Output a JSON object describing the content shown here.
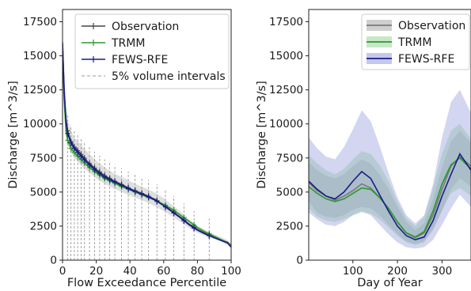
{
  "chart_data": [
    {
      "type": "line",
      "xlabel": "Flow Exceedance Percentile",
      "ylabel": "Discharge [m^3/s]",
      "xlim": [
        0,
        100
      ],
      "ylim": [
        0,
        18400
      ],
      "xticks": [
        0,
        20,
        40,
        60,
        80,
        100
      ],
      "yticks": [
        0,
        2500,
        5000,
        7500,
        10000,
        12500,
        15000,
        17500
      ],
      "grid": false,
      "legend_position": "top-right",
      "legend": [
        "Observation",
        "TRMM",
        "FEWS-RFE",
        "5% volume intervals"
      ],
      "markers_x": [
        3,
        5,
        7,
        9,
        11,
        13,
        16,
        19,
        22,
        25,
        28,
        31,
        35,
        39,
        43,
        47,
        51,
        56,
        61,
        66,
        72,
        78,
        87
      ],
      "series": [
        {
          "name": "Observation",
          "color": "#444444",
          "band": true,
          "x": [
            0,
            1,
            2,
            3,
            5,
            7,
            10,
            15,
            20,
            25,
            30,
            35,
            40,
            45,
            50,
            55,
            60,
            65,
            70,
            75,
            80,
            85,
            90,
            95,
            98,
            100
          ],
          "y": [
            16000,
            12500,
            10400,
            9500,
            8700,
            8300,
            7900,
            7200,
            6650,
            6200,
            5850,
            5550,
            5250,
            5000,
            4750,
            4450,
            4050,
            3600,
            3150,
            2650,
            2250,
            1950,
            1700,
            1450,
            1300,
            1050
          ],
          "band_low": [
            14500,
            11000,
            9300,
            8500,
            7900,
            7500,
            7100,
            6500,
            6000,
            5600,
            5300,
            5000,
            4750,
            4500,
            4250,
            3950,
            3600,
            3200,
            2800,
            2350,
            2000,
            1750,
            1550,
            1300,
            1150,
            950
          ],
          "band_high": [
            17000,
            13800,
            11300,
            10300,
            9500,
            9000,
            8600,
            7900,
            7300,
            6800,
            6400,
            6100,
            5800,
            5500,
            5250,
            4950,
            4550,
            4050,
            3550,
            3000,
            2550,
            2200,
            1900,
            1650,
            1450,
            1200
          ]
        },
        {
          "name": "TRMM",
          "color": "#2a9a2a",
          "x": [
            0,
            1,
            2,
            3,
            5,
            7,
            10,
            15,
            20,
            25,
            30,
            35,
            40,
            45,
            50,
            55,
            60,
            65,
            70,
            75,
            80,
            85,
            90,
            95,
            98,
            100
          ],
          "y": [
            15500,
            11800,
            9500,
            8800,
            8200,
            7900,
            7500,
            6900,
            6400,
            6000,
            5700,
            5400,
            5150,
            4900,
            4650,
            4400,
            4100,
            3750,
            3300,
            2850,
            2400,
            2050,
            1750,
            1450,
            1250,
            1000
          ]
        },
        {
          "name": "FEWS-RFE",
          "color": "#1a1a8c",
          "x": [
            0,
            1,
            2,
            3,
            5,
            7,
            10,
            15,
            20,
            25,
            30,
            35,
            40,
            45,
            50,
            55,
            60,
            65,
            70,
            75,
            80,
            85,
            90,
            95,
            98,
            100
          ],
          "y": [
            15900,
            12200,
            10200,
            9300,
            8600,
            8200,
            7750,
            7100,
            6550,
            6100,
            5800,
            5500,
            5200,
            4950,
            4700,
            4400,
            4000,
            3550,
            3100,
            2600,
            2200,
            1900,
            1650,
            1400,
            1250,
            950
          ]
        }
      ]
    },
    {
      "type": "line",
      "xlabel": "Day of Year",
      "ylabel": "Discharge [m^3/s]",
      "xlim": [
        1,
        365
      ],
      "ylim": [
        0,
        18400
      ],
      "xticks": [
        100,
        200,
        300
      ],
      "yticks": [
        0,
        2500,
        5000,
        7500,
        10000,
        12500,
        15000,
        17500
      ],
      "grid": false,
      "legend_position": "top-right",
      "series": [
        {
          "name": "Observation",
          "color": "#7a7a7a",
          "band_color": "#a0a0a0",
          "x": [
            1,
            20,
            40,
            60,
            80,
            100,
            120,
            140,
            160,
            180,
            200,
            220,
            240,
            260,
            280,
            300,
            320,
            340,
            365
          ],
          "y": [
            5700,
            5100,
            4700,
            4400,
            4700,
            5100,
            5600,
            5300,
            4600,
            3800,
            2800,
            2000,
            1650,
            2000,
            3300,
            5200,
            6900,
            7600,
            6900
          ],
          "band_low": [
            4300,
            3500,
            3200,
            3100,
            3300,
            3700,
            3900,
            3800,
            3300,
            2600,
            1900,
            1400,
            1200,
            1400,
            2200,
            3600,
            5200,
            6000,
            5400
          ],
          "band_high": [
            7200,
            6600,
            6200,
            6000,
            6300,
            6900,
            7400,
            7100,
            6300,
            5200,
            3900,
            2800,
            2200,
            2700,
            4500,
            6800,
            8700,
            9500,
            8600
          ]
        },
        {
          "name": "TRMM",
          "color": "#2a9a2a",
          "band_color": "#8fd08f",
          "x": [
            1,
            20,
            40,
            60,
            80,
            100,
            120,
            140,
            160,
            180,
            200,
            220,
            240,
            260,
            280,
            300,
            320,
            340,
            365
          ],
          "y": [
            5400,
            4900,
            4500,
            4300,
            4500,
            4900,
            5300,
            5200,
            4600,
            3800,
            2800,
            2000,
            1700,
            2100,
            3600,
            5600,
            7000,
            7500,
            6700
          ],
          "band_low": [
            3800,
            3200,
            2900,
            2800,
            3000,
            3300,
            3500,
            3400,
            3000,
            2400,
            1800,
            1300,
            1100,
            1300,
            2300,
            3700,
            4900,
            5300,
            4700
          ],
          "band_high": [
            7700,
            7100,
            6600,
            6300,
            6700,
            7400,
            8000,
            7800,
            7000,
            5800,
            4300,
            3100,
            2500,
            3200,
            5300,
            7800,
            9500,
            10000,
            8900
          ]
        },
        {
          "name": "FEWS-RFE",
          "color": "#1a1a8c",
          "band_color": "#8a93d8",
          "x": [
            1,
            20,
            40,
            60,
            80,
            100,
            120,
            140,
            160,
            180,
            200,
            220,
            240,
            260,
            280,
            300,
            320,
            340,
            365
          ],
          "y": [
            5800,
            5200,
            4700,
            4500,
            5000,
            5800,
            6500,
            6000,
            4800,
            3600,
            2500,
            1800,
            1500,
            1700,
            2900,
            4700,
            6300,
            7800,
            6600
          ],
          "band_low": [
            3500,
            3000,
            2600,
            2500,
            2800,
            3300,
            3600,
            3300,
            2600,
            1900,
            1300,
            950,
            850,
            950,
            1500,
            2600,
            3800,
            4800,
            3900
          ],
          "band_high": [
            9000,
            8200,
            7600,
            7400,
            8300,
            9600,
            11000,
            10200,
            8400,
            6400,
            4600,
            3300,
            2700,
            3300,
            5600,
            9000,
            11600,
            12500,
            10800
          ]
        }
      ]
    }
  ]
}
